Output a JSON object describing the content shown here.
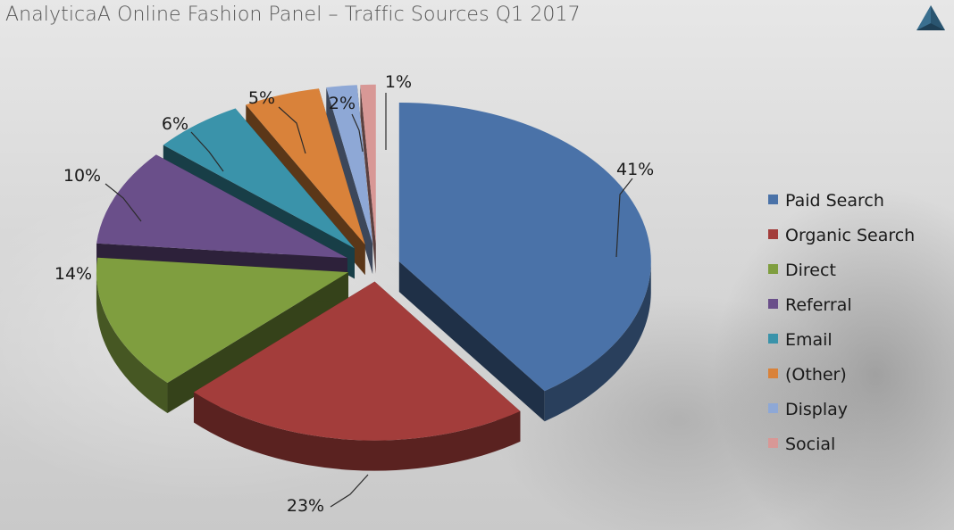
{
  "title": "AnalyticaA Online Fashion Panel – Traffic Sources Q1 2017",
  "logo_icon": "analytica-triangle-logo",
  "chart_data": {
    "type": "pie",
    "style": "3d-exploded",
    "title": "AnalyticaA Online Fashion Panel – Traffic Sources Q1 2017",
    "legend_position": "right",
    "value_unit": "%",
    "slices": [
      {
        "label": "Paid Search",
        "value": 41,
        "display": "41%",
        "color": "#4a72a8"
      },
      {
        "label": "Organic Search",
        "value": 23,
        "display": "23%",
        "color": "#a33d3b"
      },
      {
        "label": "Direct",
        "value": 14,
        "display": "14%",
        "color": "#7f9e3f"
      },
      {
        "label": "Referral",
        "value": 10,
        "display": "10%",
        "color": "#6a4f8a"
      },
      {
        "label": "Email",
        "value": 6,
        "display": "6%",
        "color": "#3a93aa"
      },
      {
        "label": "(Other)",
        "value": 5,
        "display": "5%",
        "color": "#d9823a"
      },
      {
        "label": "Display",
        "value": 2,
        "display": "2%",
        "color": "#8ea8d6"
      },
      {
        "label": "Social",
        "value": 1,
        "display": "1%",
        "color": "#d89896"
      }
    ]
  }
}
